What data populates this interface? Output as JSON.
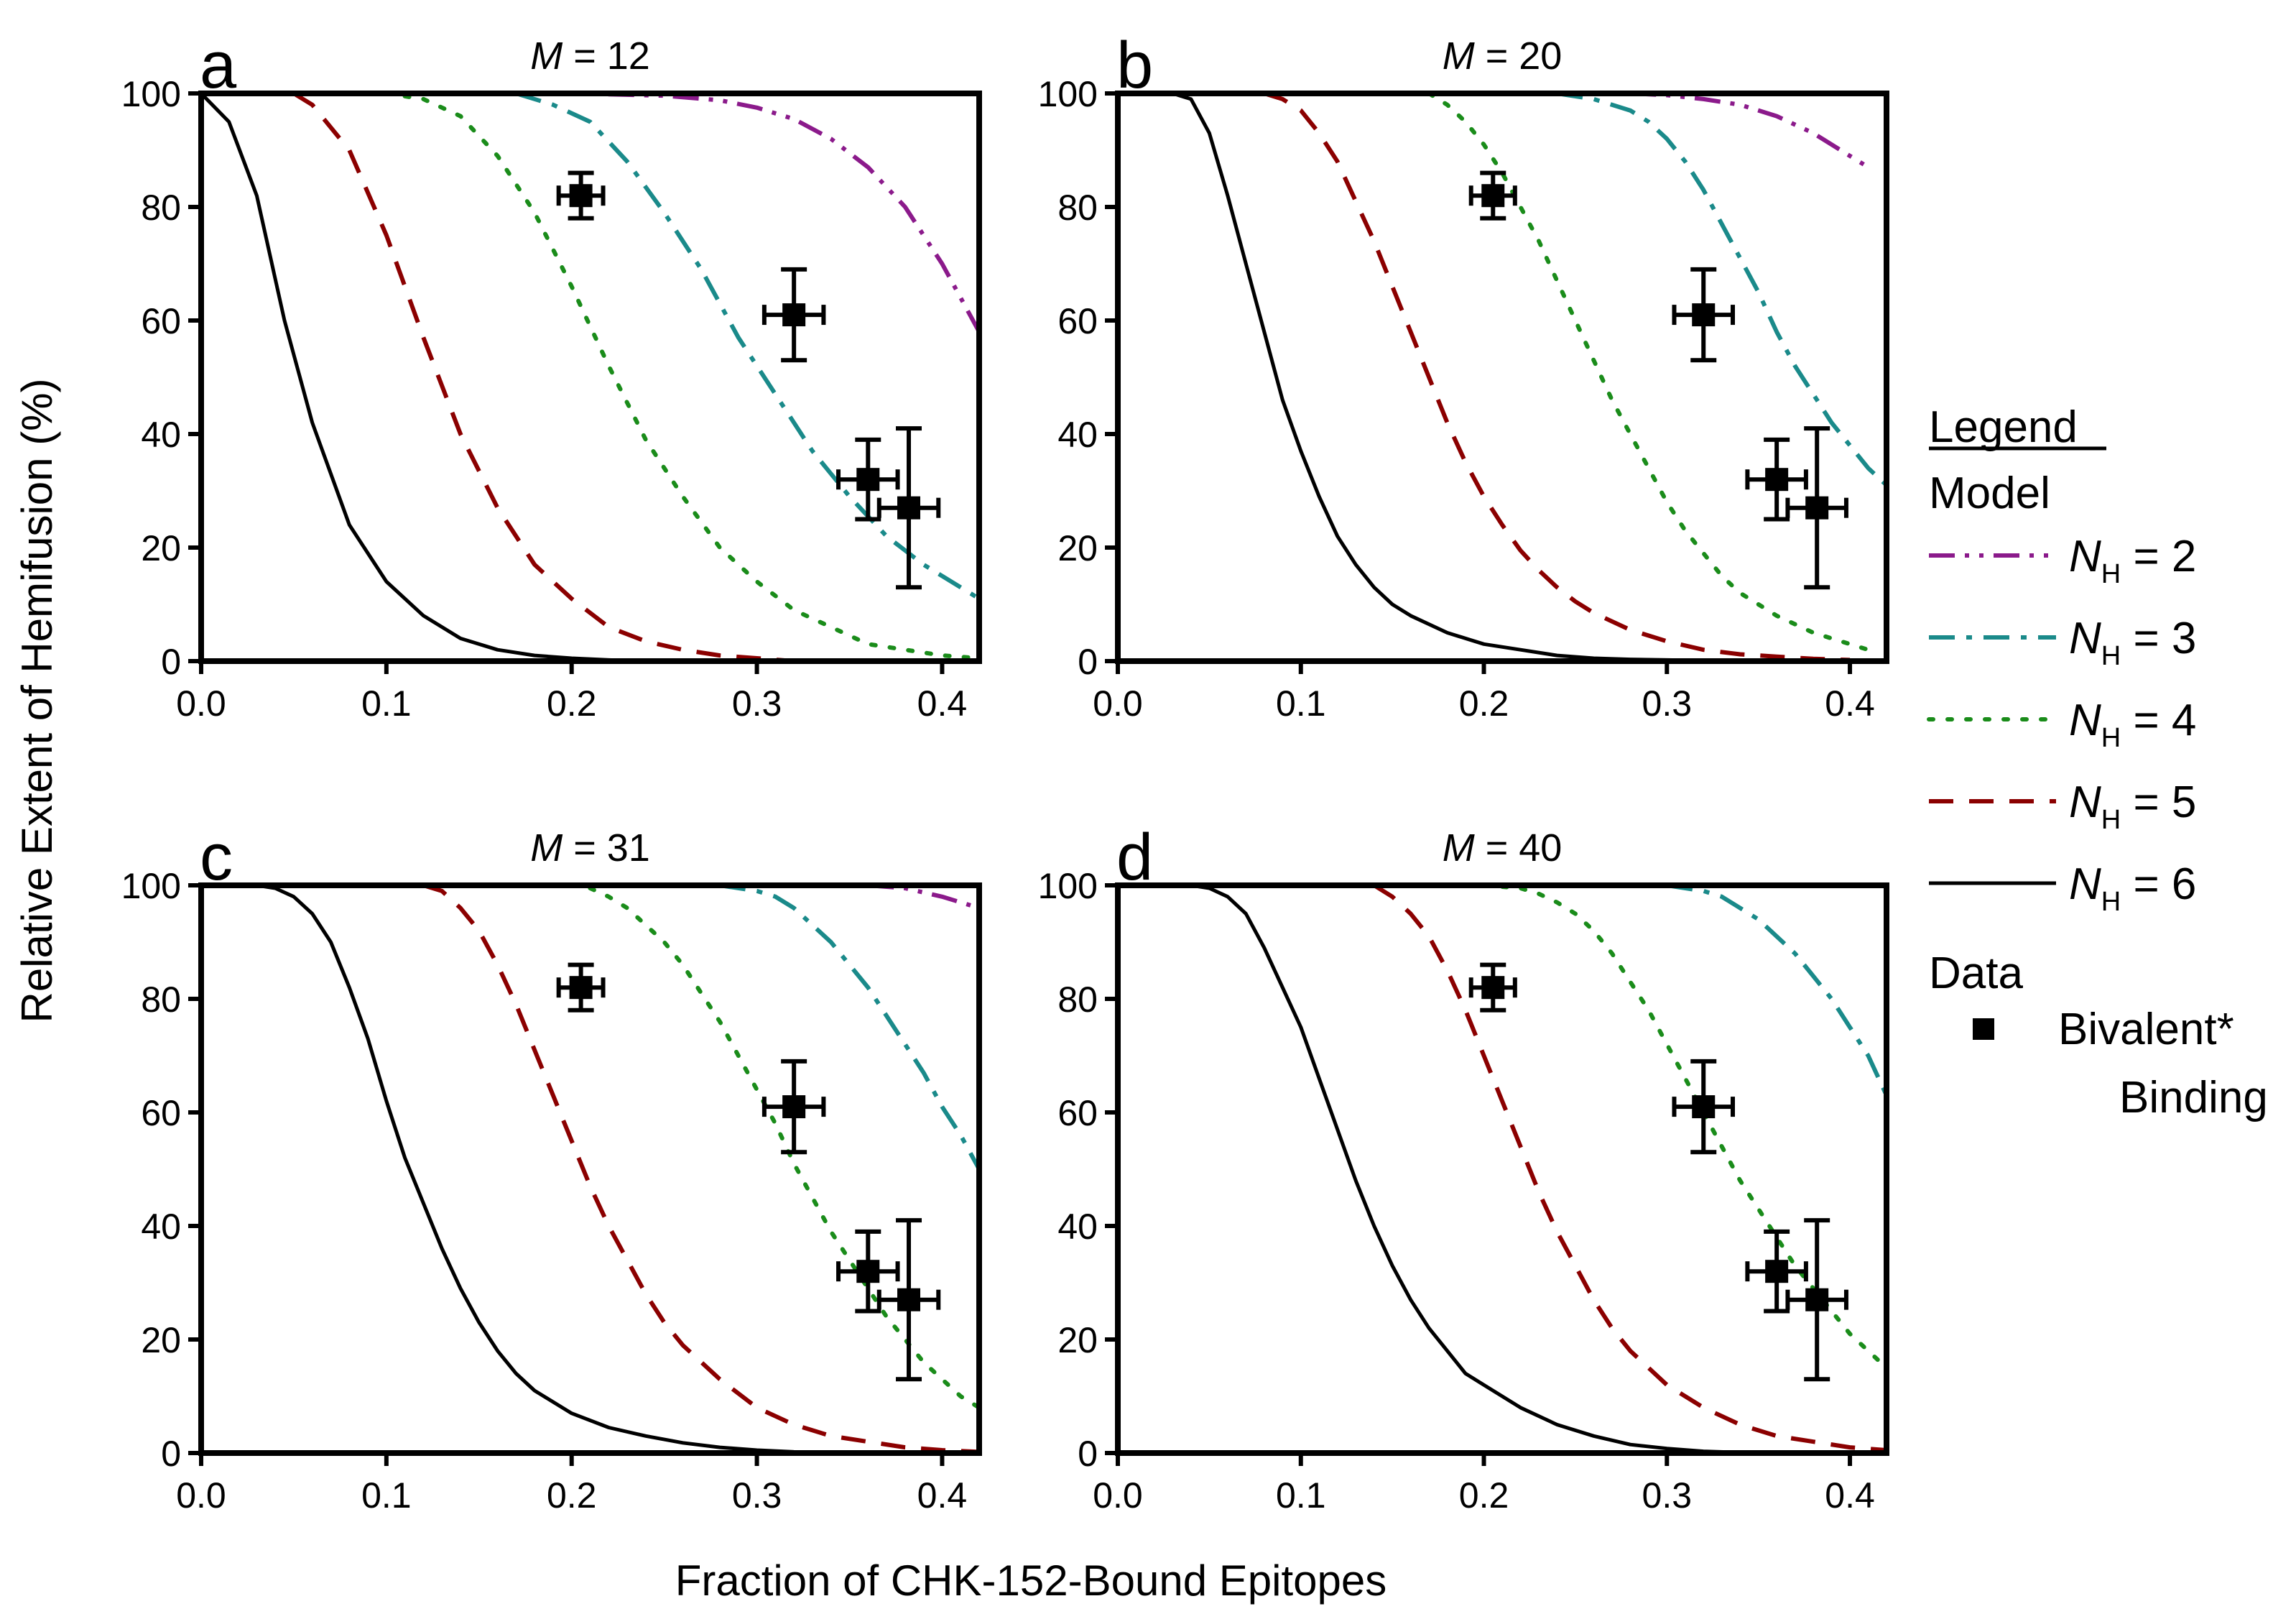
{
  "colors": {
    "N2": "#8b1a8b",
    "N3": "#1a8a8a",
    "N4": "#1a8c1a",
    "N5": "#8b0000",
    "N6": "#000000"
  },
  "chart_data": {
    "type": "line",
    "xlabel": "Fraction of CHK-152-Bound Epitopes",
    "ylabel": "Relative Extent of Hemifusion (%)",
    "xlim": [
      0.0,
      0.42
    ],
    "ylim": [
      0,
      100
    ],
    "xticks": [
      "0.0",
      "0.1",
      "0.2",
      "0.3",
      "0.4"
    ],
    "yticks": [
      "0",
      "20",
      "40",
      "60",
      "80",
      "100"
    ],
    "legend": {
      "title": "Legend",
      "model_label": "Model",
      "data_label": "Data",
      "series_prefix": "N",
      "series_sub": "H",
      "entries": [
        {
          "key": "N2",
          "value": "= 2",
          "dash": "dashdotdot"
        },
        {
          "key": "N3",
          "value": "= 3",
          "dash": "dashdot"
        },
        {
          "key": "N4",
          "value": "= 4",
          "dash": "dotted"
        },
        {
          "key": "N5",
          "value": "= 5",
          "dash": "dashed"
        },
        {
          "key": "N6",
          "value": "= 6",
          "dash": "solid"
        }
      ],
      "data_entry_line1": "Bivalent*",
      "data_entry_line2": "Binding"
    },
    "data_points": [
      {
        "x": 0.205,
        "y": 82,
        "xerr": 0.012,
        "yerr": 4
      },
      {
        "x": 0.32,
        "y": 61,
        "xerr": 0.016,
        "yerr": 8
      },
      {
        "x": 0.36,
        "y": 32,
        "xerr": 0.016,
        "yerr": 7
      },
      {
        "x": 0.382,
        "y": 27,
        "xerr": 0.016,
        "yerr": 14
      }
    ],
    "panels": [
      {
        "label": "a",
        "title_var": "M",
        "title_value": "= 12",
        "series": [
          {
            "name": "N2",
            "x": [
              0.15,
              0.2,
              0.25,
              0.28,
              0.3,
              0.32,
              0.34,
              0.36,
              0.38,
              0.4,
              0.42
            ],
            "y": [
              100,
              100,
              99.6,
              98.8,
              97.5,
              95.5,
              92,
              87,
              80,
              70,
              58
            ]
          },
          {
            "name": "N3",
            "x": [
              0.17,
              0.19,
              0.21,
              0.23,
              0.25,
              0.27,
              0.29,
              0.31,
              0.33,
              0.35,
              0.37,
              0.39,
              0.41,
              0.42
            ],
            "y": [
              100,
              98,
              95,
              88,
              79,
              69,
              57,
              47,
              37,
              29,
              22,
              17,
              13,
              11
            ]
          },
          {
            "name": "N4",
            "x": [
              0.1,
              0.12,
              0.14,
              0.16,
              0.18,
              0.2,
              0.22,
              0.24,
              0.26,
              0.28,
              0.3,
              0.32,
              0.34,
              0.36,
              0.38,
              0.4,
              0.42
            ],
            "y": [
              100,
              99,
              96,
              89,
              79,
              66,
              52,
              39,
              29,
              20,
              14,
              9,
              6,
              3,
              2,
              1,
              0.5
            ]
          },
          {
            "name": "N5",
            "x": [
              0.05,
              0.06,
              0.08,
              0.1,
              0.12,
              0.14,
              0.16,
              0.18,
              0.2,
              0.22,
              0.24,
              0.26,
              0.28,
              0.3,
              0.32
            ],
            "y": [
              100,
              98,
              90,
              75,
              57,
              40,
              27,
              17,
              11,
              6,
              3.5,
              2,
              1,
              0.5,
              0
            ]
          },
          {
            "name": "N6",
            "x": [
              0.0,
              0.015,
              0.03,
              0.045,
              0.06,
              0.08,
              0.1,
              0.12,
              0.14,
              0.16,
              0.18,
              0.2,
              0.22,
              0.24
            ],
            "y": [
              100,
              95,
              82,
              60,
              42,
              24,
              14,
              8,
              4,
              2,
              1,
              0.5,
              0.2,
              0
            ]
          }
        ]
      },
      {
        "label": "b",
        "title_var": "M",
        "title_value": "= 20",
        "series": [
          {
            "name": "N2",
            "x": [
              0.28,
              0.3,
              0.32,
              0.34,
              0.36,
              0.38,
              0.4,
              0.41
            ],
            "y": [
              100,
              99.7,
              99,
              98,
              96,
              93,
              89,
              87
            ]
          },
          {
            "name": "N3",
            "x": [
              0.24,
              0.26,
              0.28,
              0.29,
              0.3,
              0.31,
              0.32,
              0.33,
              0.34,
              0.35,
              0.36,
              0.37,
              0.38,
              0.39,
              0.4,
              0.41,
              0.42
            ],
            "y": [
              100,
              99,
              97,
              95,
              92,
              88,
              83,
              77,
              71,
              65,
              58,
              52,
              47,
              42,
              38,
              34,
              31
            ]
          },
          {
            "name": "N4",
            "x": [
              0.17,
              0.18,
              0.19,
              0.2,
              0.21,
              0.22,
              0.23,
              0.24,
              0.25,
              0.26,
              0.27,
              0.28,
              0.29,
              0.3,
              0.31,
              0.32,
              0.33,
              0.34,
              0.35,
              0.36,
              0.37,
              0.38,
              0.39,
              0.4,
              0.41
            ],
            "y": [
              100,
              98,
              95,
              91,
              86,
              80,
              74,
              67,
              60,
              53,
              46,
              40,
              34,
              28,
              23,
              19,
              15,
              12,
              10,
              8,
              6.5,
              5,
              4,
              3,
              2
            ]
          },
          {
            "name": "N5",
            "x": [
              0.08,
              0.09,
              0.1,
              0.11,
              0.12,
              0.13,
              0.14,
              0.15,
              0.16,
              0.17,
              0.18,
              0.19,
              0.2,
              0.21,
              0.22,
              0.23,
              0.24,
              0.25,
              0.26,
              0.28,
              0.3,
              0.32,
              0.34,
              0.36,
              0.38,
              0.4
            ],
            "y": [
              100,
              99,
              97,
              93,
              88,
              81,
              74,
              66,
              58,
              50,
              42,
              35,
              29,
              24,
              19.5,
              16,
              13,
              10.5,
              8.5,
              5.5,
              3.5,
              2,
              1.2,
              0.8,
              0.4,
              0.2
            ]
          },
          {
            "name": "N6",
            "x": [
              0.03,
              0.04,
              0.05,
              0.06,
              0.07,
              0.08,
              0.09,
              0.1,
              0.11,
              0.12,
              0.13,
              0.14,
              0.15,
              0.16,
              0.18,
              0.2,
              0.22,
              0.24,
              0.26,
              0.28,
              0.3,
              0.32,
              0.34
            ],
            "y": [
              100,
              99,
              93,
              82,
              70,
              58,
              46,
              37,
              29,
              22,
              17,
              13,
              10,
              8,
              5,
              3,
              2,
              1,
              0.5,
              0.3,
              0.2,
              0.1,
              0
            ]
          }
        ]
      },
      {
        "label": "c",
        "title_var": "M",
        "title_value": "= 31",
        "series": [
          {
            "name": "N2",
            "x": [
              0.36,
              0.38,
              0.4,
              0.42
            ],
            "y": [
              100,
              99.5,
              98,
              96
            ]
          },
          {
            "name": "N3",
            "x": [
              0.28,
              0.3,
              0.31,
              0.32,
              0.33,
              0.34,
              0.35,
              0.36,
              0.37,
              0.38,
              0.39,
              0.4,
              0.41,
              0.42
            ],
            "y": [
              100,
              99,
              98,
              96,
              93,
              90,
              86,
              82,
              77,
              72,
              67,
              61,
              56,
              50
            ]
          },
          {
            "name": "N4",
            "x": [
              0.2,
              0.21,
              0.22,
              0.23,
              0.24,
              0.25,
              0.26,
              0.27,
              0.28,
              0.29,
              0.3,
              0.31,
              0.32,
              0.33,
              0.34,
              0.35,
              0.36,
              0.37,
              0.38,
              0.39,
              0.4,
              0.41,
              0.42
            ],
            "y": [
              100,
              99.5,
              98,
              96,
              93,
              90,
              86,
              81,
              76,
              70,
              64,
              58,
              51,
              45,
              39,
              34,
              29,
              24,
              20,
              16,
              13,
              10,
              8
            ]
          },
          {
            "name": "N5",
            "x": [
              0.12,
              0.13,
              0.14,
              0.15,
              0.16,
              0.17,
              0.18,
              0.19,
              0.2,
              0.21,
              0.22,
              0.23,
              0.24,
              0.25,
              0.26,
              0.28,
              0.3,
              0.32,
              0.34,
              0.36,
              0.38,
              0.4,
              0.42
            ],
            "y": [
              100,
              99,
              96,
              92,
              86,
              79,
              71,
              63,
              55,
              47,
              40,
              34,
              28,
              23,
              19,
              13,
              8,
              5,
              3,
              2,
              1,
              0.5,
              0.2
            ]
          },
          {
            "name": "N6",
            "x": [
              0.03,
              0.04,
              0.05,
              0.06,
              0.07,
              0.08,
              0.09,
              0.1,
              0.11,
              0.12,
              0.13,
              0.14,
              0.15,
              0.16,
              0.17,
              0.18,
              0.2,
              0.22,
              0.24,
              0.26,
              0.28,
              0.3,
              0.32
            ],
            "y": [
              100,
              99.5,
              98,
              95,
              90,
              82,
              73,
              62,
              52,
              44,
              36,
              29,
              23,
              18,
              14,
              11,
              7,
              4.5,
              3,
              1.8,
              1,
              0.5,
              0.2
            ]
          }
        ]
      },
      {
        "label": "d",
        "title_var": "M",
        "title_value": "= 40",
        "series": [
          {
            "name": "N3",
            "x": [
              0.3,
              0.32,
              0.33,
              0.34,
              0.35,
              0.36,
              0.37,
              0.38,
              0.39,
              0.4,
              0.41,
              0.42
            ],
            "y": [
              100,
              99,
              98,
              96,
              94,
              91,
              88,
              84,
              80,
              75,
              70,
              63
            ]
          },
          {
            "name": "N4",
            "x": [
              0.2,
              0.22,
              0.23,
              0.24,
              0.25,
              0.26,
              0.27,
              0.28,
              0.29,
              0.3,
              0.31,
              0.32,
              0.33,
              0.34,
              0.35,
              0.36,
              0.37,
              0.38,
              0.39,
              0.4,
              0.41,
              0.42
            ],
            "y": [
              100,
              99.5,
              98.5,
              97,
              95,
              92,
              88,
              83,
              78,
              72,
              66,
              60,
              54,
              48,
              43,
              38,
              33,
              29,
              25,
              21,
              18,
              15
            ]
          },
          {
            "name": "N5",
            "x": [
              0.14,
              0.15,
              0.16,
              0.17,
              0.18,
              0.19,
              0.2,
              0.21,
              0.22,
              0.23,
              0.24,
              0.25,
              0.26,
              0.27,
              0.28,
              0.3,
              0.32,
              0.34,
              0.36,
              0.38,
              0.4,
              0.42
            ],
            "y": [
              100,
              98,
              95,
              91,
              85,
              78,
              70,
              62,
              54,
              46,
              39,
              33,
              27,
              22,
              18,
              12,
              8,
              5,
              3,
              2,
              1,
              0.5
            ]
          },
          {
            "name": "N6",
            "x": [
              0.04,
              0.05,
              0.06,
              0.07,
              0.08,
              0.09,
              0.1,
              0.11,
              0.12,
              0.13,
              0.14,
              0.15,
              0.16,
              0.17,
              0.18,
              0.19,
              0.2,
              0.22,
              0.24,
              0.26,
              0.28,
              0.3,
              0.32,
              0.34
            ],
            "y": [
              100,
              99.5,
              98,
              95,
              89,
              82,
              75,
              66,
              57,
              48,
              40,
              33,
              27,
              22,
              18,
              14,
              12,
              8,
              5,
              3,
              1.5,
              0.8,
              0.3,
              0.1
            ]
          }
        ]
      }
    ]
  }
}
